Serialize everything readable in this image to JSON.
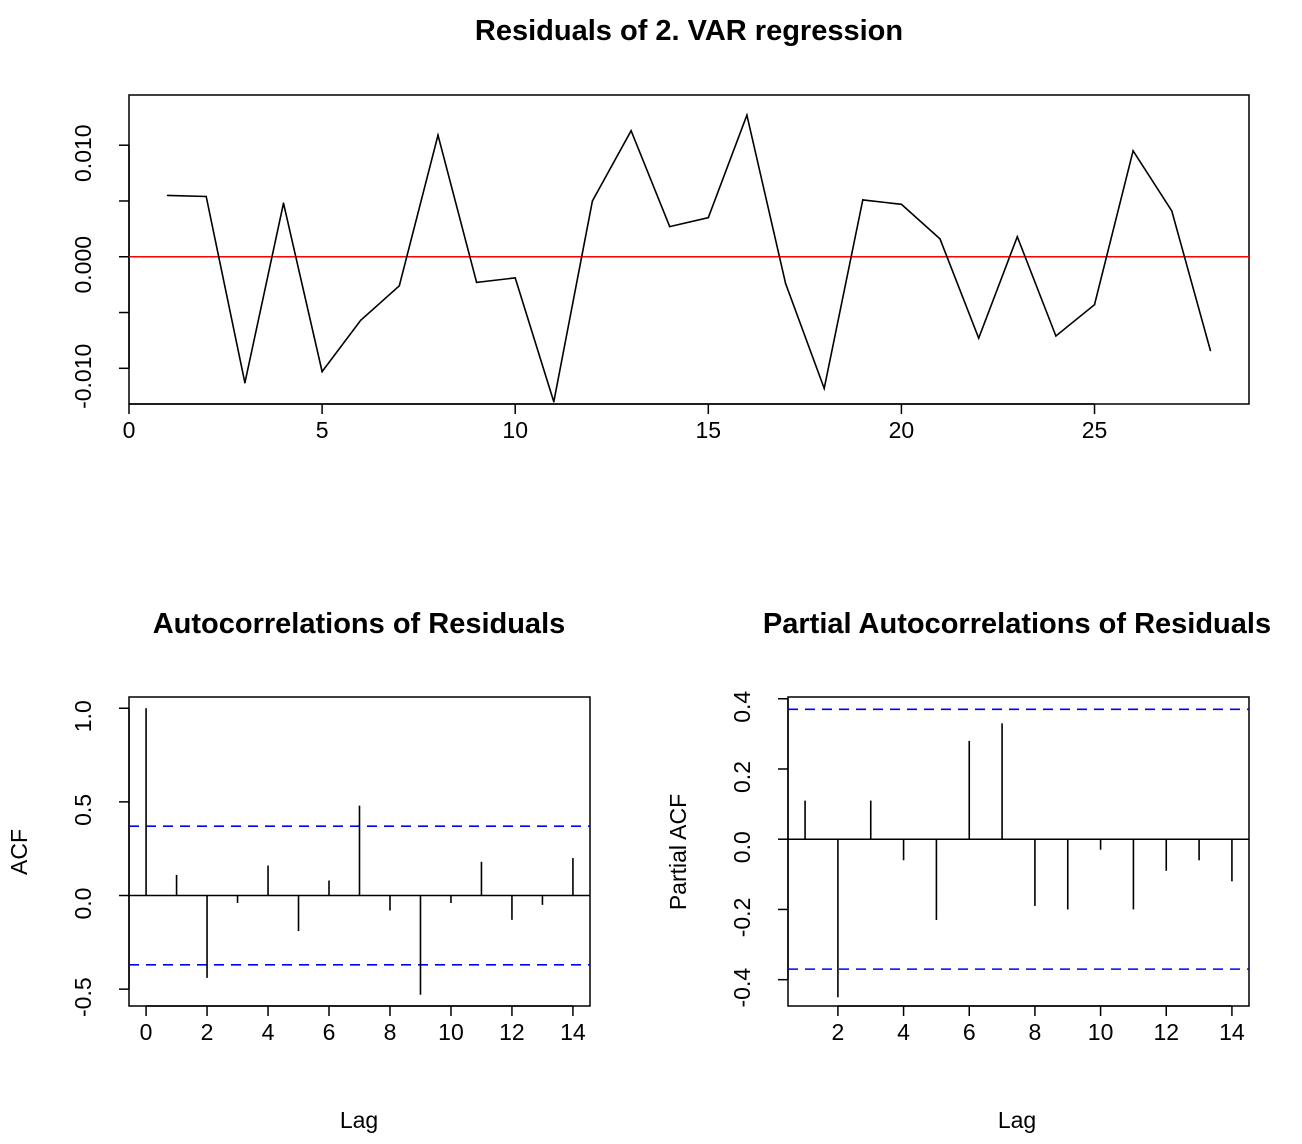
{
  "chart_data": [
    {
      "type": "line",
      "title": "Residuals of 2. VAR regression",
      "xlabel": "",
      "ylabel": "",
      "xlim": [
        0,
        29
      ],
      "ylim": [
        -0.0132,
        0.0145
      ],
      "x_ticks": [
        0,
        5,
        10,
        15,
        20,
        25
      ],
      "y_ticks": [
        -0.01,
        -0.005,
        0.0,
        0.005,
        0.01
      ],
      "y_tick_labels": [
        "-0.010",
        "",
        "0.000",
        "",
        "0.010"
      ],
      "x": [
        1,
        2,
        3,
        4,
        5,
        6,
        7,
        8,
        9,
        10,
        11,
        12,
        13,
        14,
        15,
        16,
        17,
        18,
        19,
        20,
        21,
        22,
        23,
        24,
        25,
        26,
        27,
        28
      ],
      "values": [
        0.0055,
        0.0054,
        -0.0113,
        0.0048,
        -0.0103,
        -0.0057,
        -0.0026,
        0.0109,
        -0.0023,
        -0.0019,
        -0.013,
        0.005,
        0.0113,
        0.0027,
        0.0035,
        0.0127,
        -0.0024,
        -0.0118,
        0.0051,
        0.0047,
        0.0016,
        -0.0073,
        0.0018,
        -0.0071,
        -0.0043,
        0.0095,
        0.0041,
        -0.0084
      ],
      "series_color": "#000000",
      "reference_line": {
        "y": 0,
        "color": "#ff0000"
      }
    },
    {
      "type": "bar",
      "title": "Autocorrelations of Residuals",
      "xlabel": "Lag",
      "ylabel": "ACF",
      "xlim": [
        -0.56,
        14.56
      ],
      "ylim": [
        -0.59,
        1.06
      ],
      "x_ticks": [
        0,
        2,
        4,
        6,
        8,
        10,
        12,
        14
      ],
      "y_ticks": [
        -0.5,
        0.0,
        0.5,
        1.0
      ],
      "y_tick_labels": [
        "-0.5",
        "0.0",
        "0.5",
        "1.0"
      ],
      "x": [
        0,
        1,
        2,
        3,
        4,
        5,
        6,
        7,
        8,
        9,
        10,
        11,
        12,
        13,
        14
      ],
      "values": [
        1.0,
        0.11,
        -0.44,
        -0.04,
        0.16,
        -0.19,
        0.08,
        0.48,
        -0.08,
        -0.53,
        -0.04,
        0.18,
        -0.13,
        -0.05,
        0.2
      ],
      "confidence_bound": 0.37,
      "bound_color": "#0000ff"
    },
    {
      "type": "bar",
      "title": "Partial Autocorrelations of Residuals",
      "xlabel": "Lag",
      "ylabel": "Partial ACF",
      "xlim": [
        0.48,
        14.52
      ],
      "ylim": [
        -0.475,
        0.405
      ],
      "x_ticks": [
        2,
        4,
        6,
        8,
        10,
        12,
        14
      ],
      "y_ticks": [
        -0.4,
        -0.2,
        0.0,
        0.2,
        0.4
      ],
      "y_tick_labels": [
        "-0.4",
        "-0.2",
        "0.0",
        "0.2",
        "0.4"
      ],
      "x": [
        1,
        2,
        3,
        4,
        5,
        6,
        7,
        8,
        9,
        10,
        11,
        12,
        13,
        14
      ],
      "values": [
        0.11,
        -0.45,
        0.11,
        -0.06,
        -0.23,
        0.28,
        0.33,
        -0.19,
        -0.2,
        -0.03,
        -0.2,
        -0.09,
        -0.06,
        -0.12
      ],
      "confidence_bound": 0.37,
      "bound_color": "#0000ff"
    }
  ]
}
